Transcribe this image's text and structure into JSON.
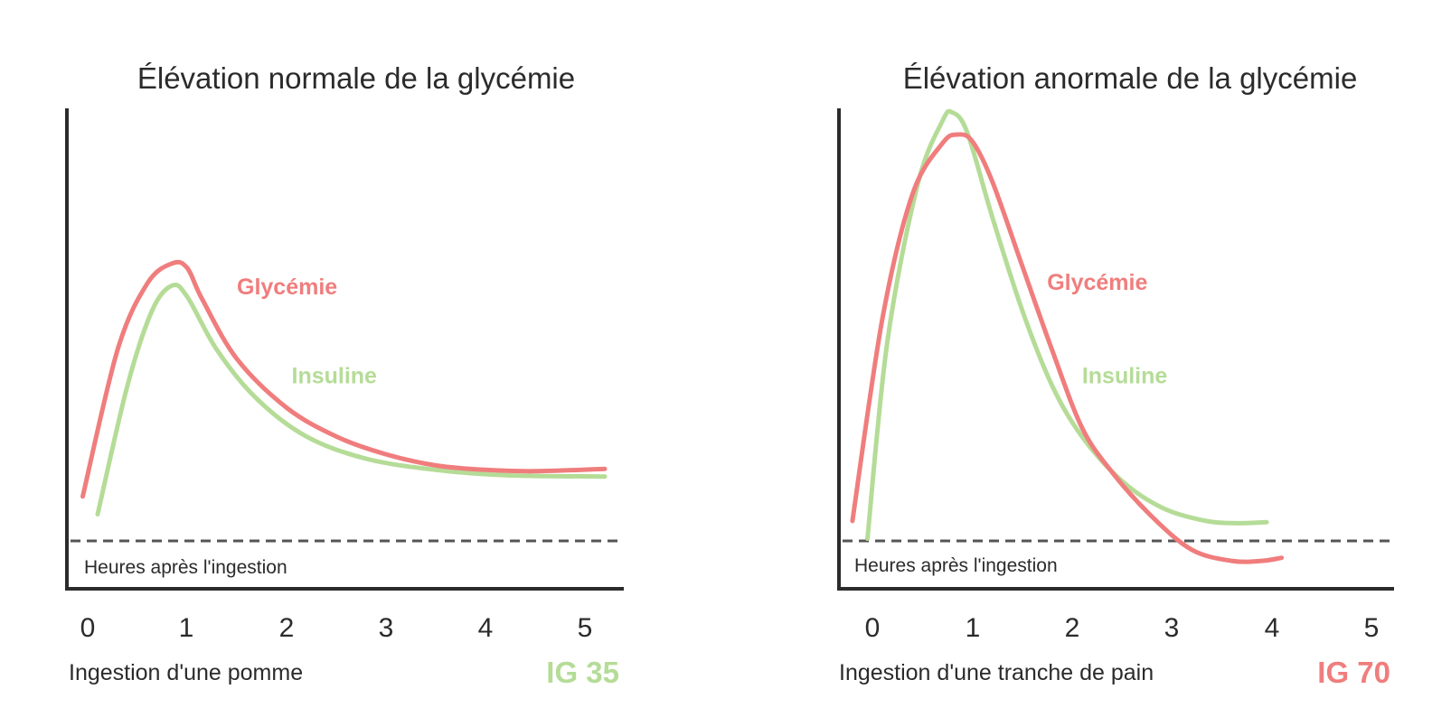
{
  "colors": {
    "glycemie": "#f07d7d",
    "insuline": "#b5dc97",
    "axis": "#2b2b2b",
    "baseline": "#555555"
  },
  "chart_data": [
    {
      "type": "line",
      "title": "Élévation normale de la glycémie",
      "baseline_label": "Heures après l'ingestion",
      "caption": "Ingestion d'une pomme",
      "badge": {
        "text": "IG 35",
        "color_key": "insuline"
      },
      "x_ticks": [
        "0",
        "1",
        "2",
        "3",
        "4",
        "5"
      ],
      "xlim": [
        -0.2,
        5.4
      ],
      "ylim": [
        -1,
        10
      ],
      "baseline_y": 0,
      "series": [
        {
          "name": "Glycémie",
          "color_key": "glycemie",
          "points": [
            [
              -0.05,
              1.0
            ],
            [
              0.3,
              4.3
            ],
            [
              0.6,
              5.8
            ],
            [
              0.85,
              6.25
            ],
            [
              1.0,
              6.15
            ],
            [
              1.15,
              5.45
            ],
            [
              1.5,
              4.1
            ],
            [
              2.0,
              3.0
            ],
            [
              2.5,
              2.35
            ],
            [
              3.0,
              1.95
            ],
            [
              3.5,
              1.7
            ],
            [
              4.0,
              1.6
            ],
            [
              4.5,
              1.57
            ],
            [
              5.2,
              1.62
            ]
          ]
        },
        {
          "name": "Insuline",
          "color_key": "insuline",
          "points": [
            [
              0.1,
              0.6
            ],
            [
              0.4,
              3.5
            ],
            [
              0.65,
              5.2
            ],
            [
              0.85,
              5.75
            ],
            [
              1.0,
              5.5
            ],
            [
              1.3,
              4.3
            ],
            [
              1.7,
              3.2
            ],
            [
              2.2,
              2.35
            ],
            [
              2.8,
              1.85
            ],
            [
              3.5,
              1.6
            ],
            [
              4.2,
              1.48
            ],
            [
              5.2,
              1.45
            ]
          ]
        }
      ],
      "series_label_positions": [
        {
          "x": 1.5,
          "y": 5.55
        },
        {
          "x": 2.05,
          "y": 3.55
        }
      ]
    },
    {
      "type": "line",
      "title": "Élévation anormale de la glycémie",
      "baseline_label": "Heures après l'ingestion",
      "caption": "Ingestion d'une tranche de pain",
      "badge": {
        "text": "IG 70",
        "color_key": "glycemie"
      },
      "x_ticks": [
        "0",
        "1",
        "2",
        "3",
        "4",
        "5"
      ],
      "xlim": [
        -0.3,
        5.3
      ],
      "ylim": [
        -1,
        10
      ],
      "baseline_y": 0,
      "series": [
        {
          "name": "Glycémie",
          "color_key": "glycemie",
          "points": [
            [
              -0.2,
              0.45
            ],
            [
              0.1,
              5.0
            ],
            [
              0.4,
              7.8
            ],
            [
              0.7,
              8.95
            ],
            [
              0.85,
              9.15
            ],
            [
              1.0,
              9.0
            ],
            [
              1.2,
              8.1
            ],
            [
              1.5,
              6.2
            ],
            [
              1.8,
              4.3
            ],
            [
              2.1,
              2.55
            ],
            [
              2.4,
              1.55
            ],
            [
              2.8,
              0.55
            ],
            [
              3.2,
              -0.2
            ],
            [
              3.6,
              -0.45
            ],
            [
              3.9,
              -0.45
            ],
            [
              4.1,
              -0.38
            ]
          ]
        },
        {
          "name": "Insuline",
          "color_key": "insuline",
          "points": [
            [
              -0.05,
              0.05
            ],
            [
              0.15,
              4.5
            ],
            [
              0.45,
              8.0
            ],
            [
              0.7,
              9.45
            ],
            [
              0.8,
              9.65
            ],
            [
              0.95,
              9.2
            ],
            [
              1.2,
              7.3
            ],
            [
              1.5,
              5.2
            ],
            [
              1.8,
              3.5
            ],
            [
              2.1,
              2.35
            ],
            [
              2.5,
              1.35
            ],
            [
              2.9,
              0.75
            ],
            [
              3.3,
              0.47
            ],
            [
              3.6,
              0.4
            ],
            [
              3.95,
              0.42
            ]
          ]
        }
      ],
      "series_label_positions": [
        {
          "x": 1.75,
          "y": 5.65
        },
        {
          "x": 2.1,
          "y": 3.55
        }
      ]
    }
  ]
}
